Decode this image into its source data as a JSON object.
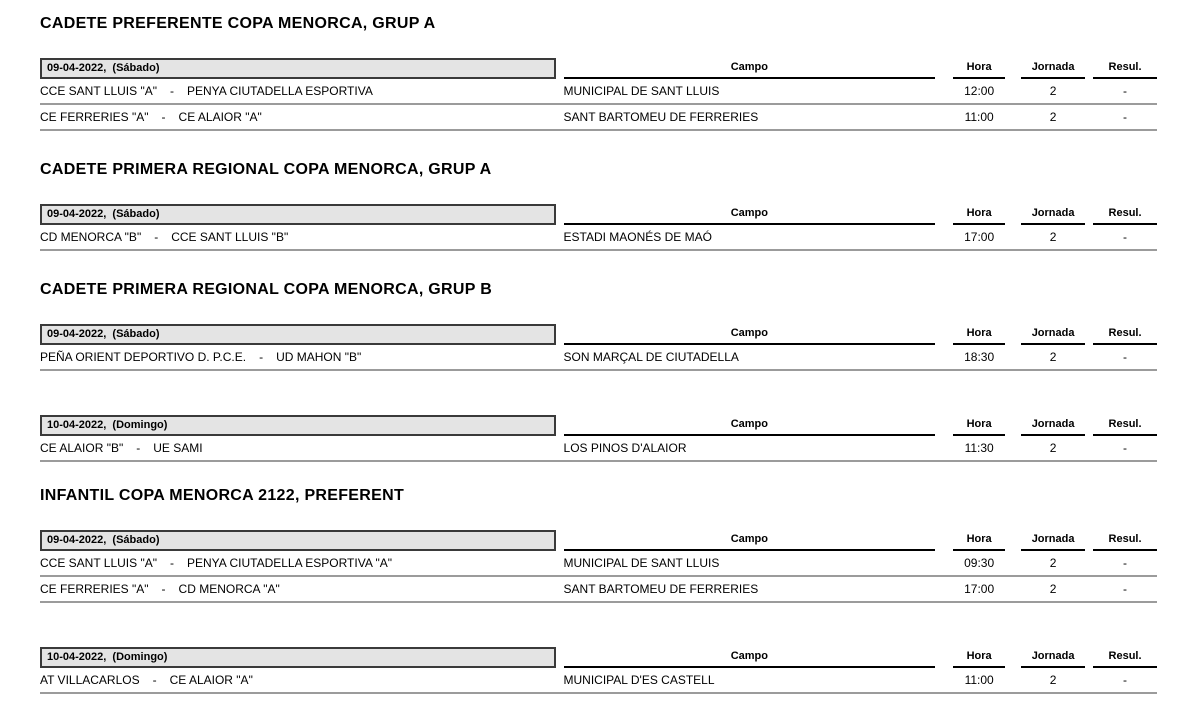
{
  "page": {
    "background_color": "#ffffff",
    "text_color": "#000000",
    "date_box_fill": "#e4e4e4",
    "row_line_color": "#9b9b9b"
  },
  "columns": {
    "campo": "Campo",
    "hora": "Hora",
    "jornada": "Jornada",
    "resul": "Resul."
  },
  "separator": "-",
  "sections": [
    {
      "title": "CADETE PREFERENTE COPA MENORCA, GRUP A",
      "tables": [
        {
          "date": "09-04-2022,  (Sábado)",
          "rows": [
            {
              "home": "CCE SANT LLUIS \"A\"",
              "away": "PENYA CIUTADELLA ESPORTIVA",
              "campo": "MUNICIPAL DE SANT LLUIS",
              "hora": "12:00",
              "jornada": "2",
              "resul": "-"
            },
            {
              "home": "CE FERRERIES \"A\"",
              "away": "CE ALAIOR \"A\"",
              "campo": "SANT BARTOMEU DE FERRERIES",
              "hora": "11:00",
              "jornada": "2",
              "resul": "-"
            }
          ]
        }
      ]
    },
    {
      "title": "CADETE PRIMERA REGIONAL COPA MENORCA, GRUP A",
      "tables": [
        {
          "date": "09-04-2022,  (Sábado)",
          "rows": [
            {
              "home": "CD MENORCA \"B\"",
              "away": "CCE SANT LLUIS \"B\"",
              "campo": "ESTADI MAONÉS DE MAÓ",
              "hora": "17:00",
              "jornada": "2",
              "resul": "-"
            }
          ]
        }
      ]
    },
    {
      "title": "CADETE PRIMERA REGIONAL COPA MENORCA, GRUP B",
      "tables": [
        {
          "date": "09-04-2022,  (Sábado)",
          "rows": [
            {
              "home": "PEÑA ORIENT DEPORTIVO D. P.C.E.",
              "away": "UD MAHON \"B\"",
              "campo": "SON MARÇAL DE CIUTADELLA",
              "hora": "18:30",
              "jornada": "2",
              "resul": "-"
            }
          ]
        },
        {
          "date": "10-04-2022,  (Domingo)",
          "rows": [
            {
              "home": "CE ALAIOR \"B\"",
              "away": "UE SAMI",
              "campo": "LOS PINOS D'ALAIOR",
              "hora": "11:30",
              "jornada": "2",
              "resul": "-"
            }
          ]
        }
      ]
    },
    {
      "title": "INFANTIL COPA MENORCA 2122, PREFERENT",
      "tables": [
        {
          "date": "09-04-2022,  (Sábado)",
          "rows": [
            {
              "home": "CCE SANT LLUIS \"A\"",
              "away": "PENYA CIUTADELLA ESPORTIVA \"A\"",
              "campo": "MUNICIPAL DE SANT LLUIS",
              "hora": "09:30",
              "jornada": "2",
              "resul": "-"
            },
            {
              "home": "CE FERRERIES \"A\"",
              "away": "CD MENORCA \"A\"",
              "campo": "SANT BARTOMEU DE FERRERIES",
              "hora": "17:00",
              "jornada": "2",
              "resul": "-"
            }
          ]
        },
        {
          "date": "10-04-2022,  (Domingo)",
          "rows": [
            {
              "home": "AT VILLACARLOS",
              "away": "CE ALAIOR \"A\"",
              "campo": "MUNICIPAL D'ES CASTELL",
              "hora": "11:00",
              "jornada": "2",
              "resul": "-"
            }
          ]
        }
      ]
    }
  ]
}
